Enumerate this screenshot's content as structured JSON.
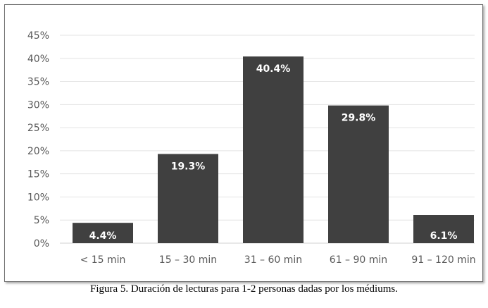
{
  "caption": "Figura 5. Duración de lecturas para 1-2 personas dadas por los médiums.",
  "chart_data": {
    "type": "bar",
    "categories": [
      "< 15 min",
      "15 – 30 min",
      "31 – 60 min",
      "61 – 90 min",
      "91 – 120 min"
    ],
    "values": [
      4.4,
      19.3,
      40.4,
      29.8,
      6.1
    ],
    "data_labels": [
      "4.4%",
      "19.3%",
      "40.4%",
      "29.8%",
      "6.1%"
    ],
    "y_ticks": [
      "0%",
      "5%",
      "10%",
      "15%",
      "20%",
      "25%",
      "30%",
      "35%",
      "40%",
      "45%"
    ],
    "ylim": [
      0,
      45
    ],
    "grid": true,
    "bar_color": "#404040",
    "grid_color": "#e3e3e3"
  }
}
